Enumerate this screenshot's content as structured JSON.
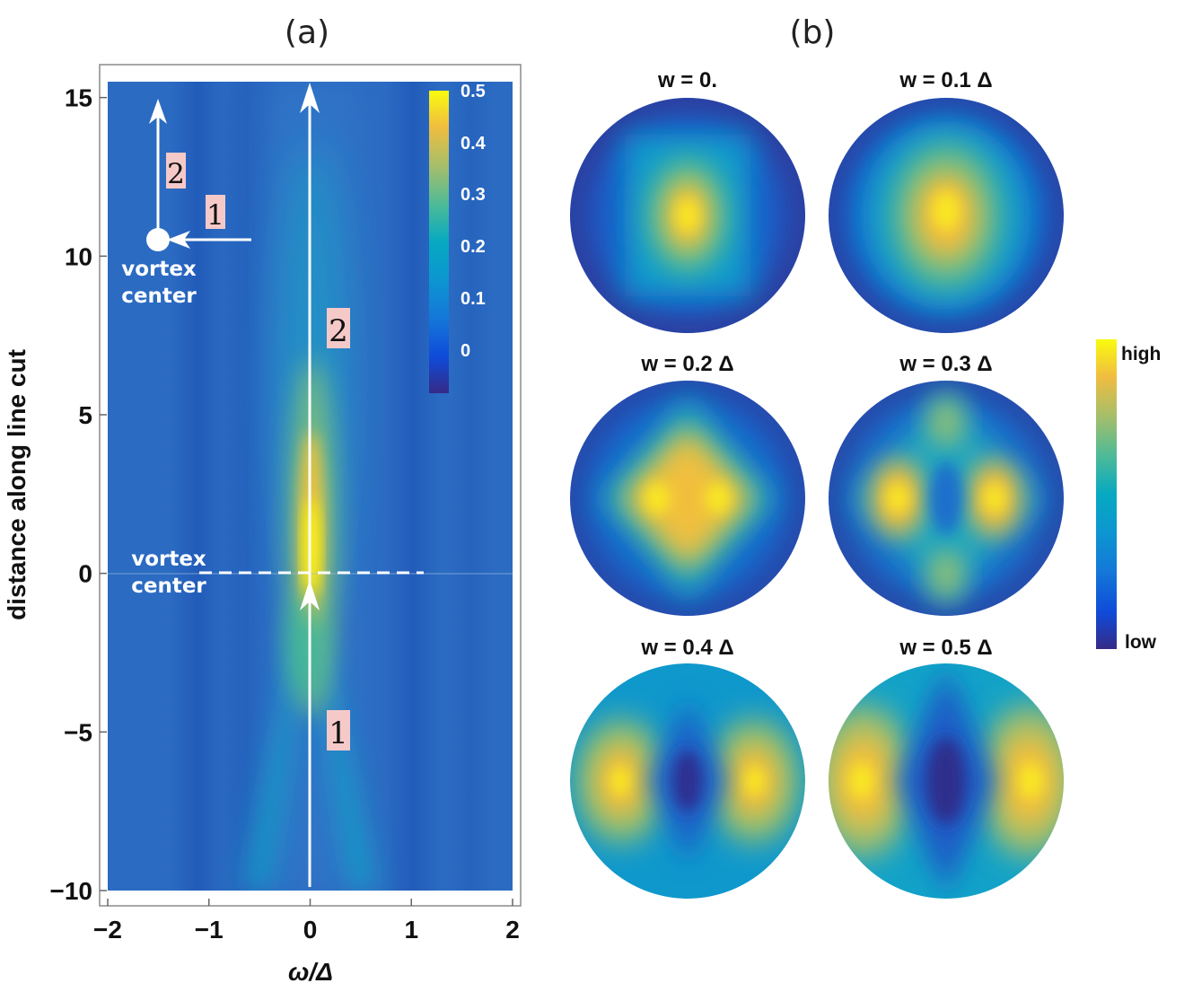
{
  "chart_data": [
    {
      "type": "heatmap",
      "panel_label": "(a)",
      "xlabel": "ω/Δ",
      "ylabel": "distance along line cut",
      "xlim": [
        -2,
        2
      ],
      "ylim": [
        -10,
        15.5
      ],
      "x_ticks": [
        {
          "value": -2,
          "label": "−2"
        },
        {
          "value": -1,
          "label": "−1"
        },
        {
          "value": 0,
          "label": "0"
        },
        {
          "value": 1,
          "label": "1"
        },
        {
          "value": 2,
          "label": "2"
        }
      ],
      "y_ticks": [
        {
          "value": 15,
          "label": "15"
        },
        {
          "value": 10,
          "label": "10"
        },
        {
          "value": 5,
          "label": "5"
        },
        {
          "value": 0,
          "label": "0"
        },
        {
          "value": -5,
          "label": "−5"
        },
        {
          "value": -10,
          "label": "−10"
        }
      ],
      "colorbar": {
        "min": -0.1,
        "max": 0.5,
        "ticks": [
          {
            "value": 0.5,
            "label": "0.5"
          },
          {
            "value": 0.4,
            "label": "0.4"
          },
          {
            "value": 0.3,
            "label": "0.3"
          },
          {
            "value": 0.2,
            "label": "0.2"
          },
          {
            "value": 0.1,
            "label": "0.1"
          },
          {
            "value": 0,
            "label": "0"
          }
        ]
      },
      "annotations": {
        "vortex_center_upper": [
          "vortex",
          "center"
        ],
        "vortex_center_lower": [
          "vortex",
          "center"
        ],
        "vortex_center_value": 0,
        "cut_2_label": "2",
        "cut_1_label": "1",
        "inset_2_label": "2",
        "inset_1_label": "1"
      }
    },
    {
      "type": "heatmap",
      "panel_label": "(b)",
      "maps": [
        {
          "title": "w = 0.",
          "w": 0.0
        },
        {
          "title": "w = 0.1 Δ",
          "w": 0.1
        },
        {
          "title": "w = 0.2 Δ",
          "w": 0.2
        },
        {
          "title": "w = 0.3 Δ",
          "w": 0.3
        },
        {
          "title": "w = 0.4 Δ",
          "w": 0.4
        },
        {
          "title": "w = 0.5 Δ",
          "w": 0.5
        }
      ],
      "colorbar": {
        "high_label": "high",
        "low_label": "low"
      }
    }
  ],
  "colors": {
    "parula": [
      "#352a87",
      "#0363e1",
      "#1485d4",
      "#06a7c6",
      "#38b99e",
      "#92bf73",
      "#d9ba56",
      "#fcce2e",
      "#f9fb0e"
    ],
    "background_field": "#2b6bc2",
    "arrow": "#ffffff",
    "badge": "#f6c9c9"
  }
}
